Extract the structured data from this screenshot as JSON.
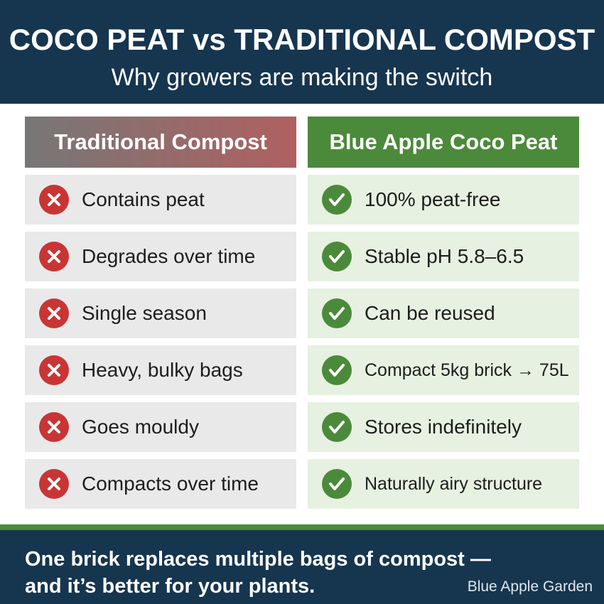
{
  "header": {
    "title": "COCO PEAT vs TRADITIONAL COMPOST",
    "subtitle": "Why growers are making the switch"
  },
  "columns": [
    {
      "heading": "Traditional Compost",
      "items": [
        "Contains peat",
        "Degrades over time",
        "Single season",
        "Heavy, bulky bags",
        "Goes mouldy",
        "Compacts over time"
      ]
    },
    {
      "heading": "Blue Apple Coco Peat",
      "items": [
        "100% peat-free",
        "Stable pH 5.8–6.5",
        "Can be reused",
        "Compact 5kg brick → 75L",
        "Stores indefinitely",
        "Naturally airy structure"
      ]
    }
  ],
  "footer": {
    "text": "One brick replaces multiple bags of compost — and it’s better for your plants.",
    "brand": "Blue Apple Garden"
  }
}
